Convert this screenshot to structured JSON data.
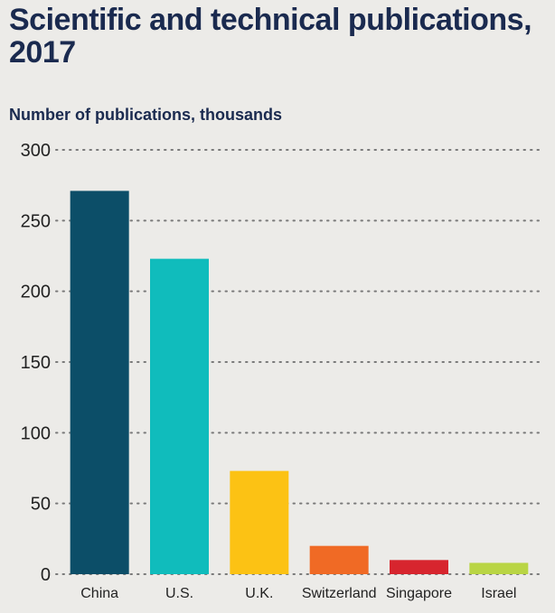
{
  "chart_data": {
    "type": "bar",
    "title": "Scientific and technical publications, 2017",
    "ylabel": "Number of publications, thousands",
    "xlabel": "",
    "categories": [
      "China",
      "U.S.",
      "U.K.",
      "Switzerland",
      "Singapore",
      "Israel"
    ],
    "values": [
      271,
      223,
      73,
      20,
      10,
      8
    ],
    "ylim": [
      0,
      300
    ],
    "yticks": [
      "0",
      "50",
      "100",
      "150",
      "200",
      "250",
      "300"
    ],
    "grid": "horizontal dotted",
    "colors": [
      "#0c4e68",
      "#10bcbc",
      "#fcc214",
      "#f06a25",
      "#d7252e",
      "#b9d544"
    ]
  }
}
